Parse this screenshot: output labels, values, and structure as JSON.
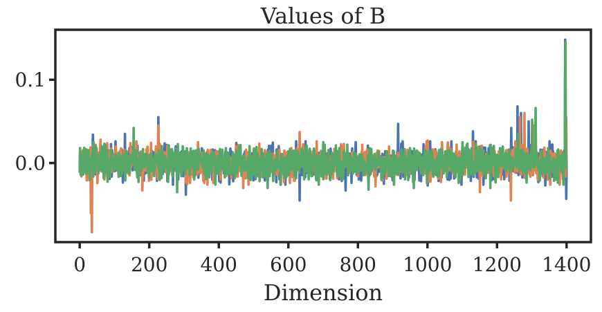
{
  "chart_data": {
    "type": "line",
    "title": "Values of B",
    "xlabel": "Dimension",
    "ylabel": "",
    "xlim": [
      -70,
      1470
    ],
    "ylim": [
      -0.095,
      0.16
    ],
    "x_ticks": [
      0,
      200,
      400,
      600,
      800,
      1000,
      1200,
      1400
    ],
    "x_tick_labels": [
      "0",
      "200",
      "400",
      "600",
      "800",
      "1000",
      "1200",
      "1400"
    ],
    "y_ticks": [
      0.0,
      0.1
    ],
    "y_tick_labels": [
      "0.0",
      "0.1"
    ],
    "grid": false,
    "legend": "none",
    "x": {
      "start": 0,
      "end": 1400,
      "count": 1400
    },
    "series": [
      {
        "color": "#4c72b0",
        "seed": 11,
        "noise_sd": 0.0095,
        "features": [
          {
            "x": 30,
            "y": -0.021
          },
          {
            "x": 38,
            "y": 0.034
          },
          {
            "x": 130,
            "y": 0.035
          },
          {
            "x": 226,
            "y": 0.055
          },
          {
            "x": 305,
            "y": -0.038
          },
          {
            "x": 450,
            "y": 0.024
          },
          {
            "x": 632,
            "y": -0.045
          },
          {
            "x": 764,
            "y": -0.033
          },
          {
            "x": 915,
            "y": 0.047
          },
          {
            "x": 1000,
            "y": -0.027
          },
          {
            "x": 1130,
            "y": 0.038
          },
          {
            "x": 1240,
            "y": 0.042
          },
          {
            "x": 1258,
            "y": 0.068
          },
          {
            "x": 1268,
            "y": 0.06
          },
          {
            "x": 1290,
            "y": 0.05
          },
          {
            "x": 1338,
            "y": -0.027
          },
          {
            "x": 1395,
            "y": 0.148
          },
          {
            "x": 1398,
            "y": -0.043
          }
        ]
      },
      {
        "color": "#dd8452",
        "seed": 23,
        "noise_sd": 0.0095,
        "features": [
          {
            "x": 32,
            "y": -0.06
          },
          {
            "x": 35,
            "y": -0.083
          },
          {
            "x": 60,
            "y": 0.028
          },
          {
            "x": 180,
            "y": -0.033
          },
          {
            "x": 226,
            "y": 0.045
          },
          {
            "x": 340,
            "y": 0.025
          },
          {
            "x": 470,
            "y": -0.03
          },
          {
            "x": 632,
            "y": 0.037
          },
          {
            "x": 850,
            "y": -0.028
          },
          {
            "x": 1000,
            "y": 0.027
          },
          {
            "x": 1150,
            "y": -0.035
          },
          {
            "x": 1239,
            "y": -0.045
          },
          {
            "x": 1265,
            "y": 0.055
          },
          {
            "x": 1278,
            "y": 0.06
          },
          {
            "x": 1305,
            "y": 0.045
          },
          {
            "x": 1345,
            "y": -0.02
          },
          {
            "x": 1398,
            "y": 0.055
          }
        ]
      },
      {
        "color": "#55a868",
        "seed": 37,
        "noise_sd": 0.0095,
        "features": [
          {
            "x": 40,
            "y": 0.025
          },
          {
            "x": 155,
            "y": 0.042
          },
          {
            "x": 280,
            "y": -0.035
          },
          {
            "x": 540,
            "y": -0.03
          },
          {
            "x": 700,
            "y": 0.025
          },
          {
            "x": 830,
            "y": -0.032
          },
          {
            "x": 960,
            "y": -0.03
          },
          {
            "x": 1100,
            "y": 0.025
          },
          {
            "x": 1180,
            "y": -0.03
          },
          {
            "x": 1260,
            "y": 0.035
          },
          {
            "x": 1300,
            "y": 0.052
          },
          {
            "x": 1310,
            "y": 0.066
          },
          {
            "x": 1370,
            "y": -0.02
          },
          {
            "x": 1395,
            "y": 0.13
          },
          {
            "x": 1396,
            "y": 0.145
          },
          {
            "x": 1398,
            "y": 0.01
          }
        ]
      }
    ]
  }
}
